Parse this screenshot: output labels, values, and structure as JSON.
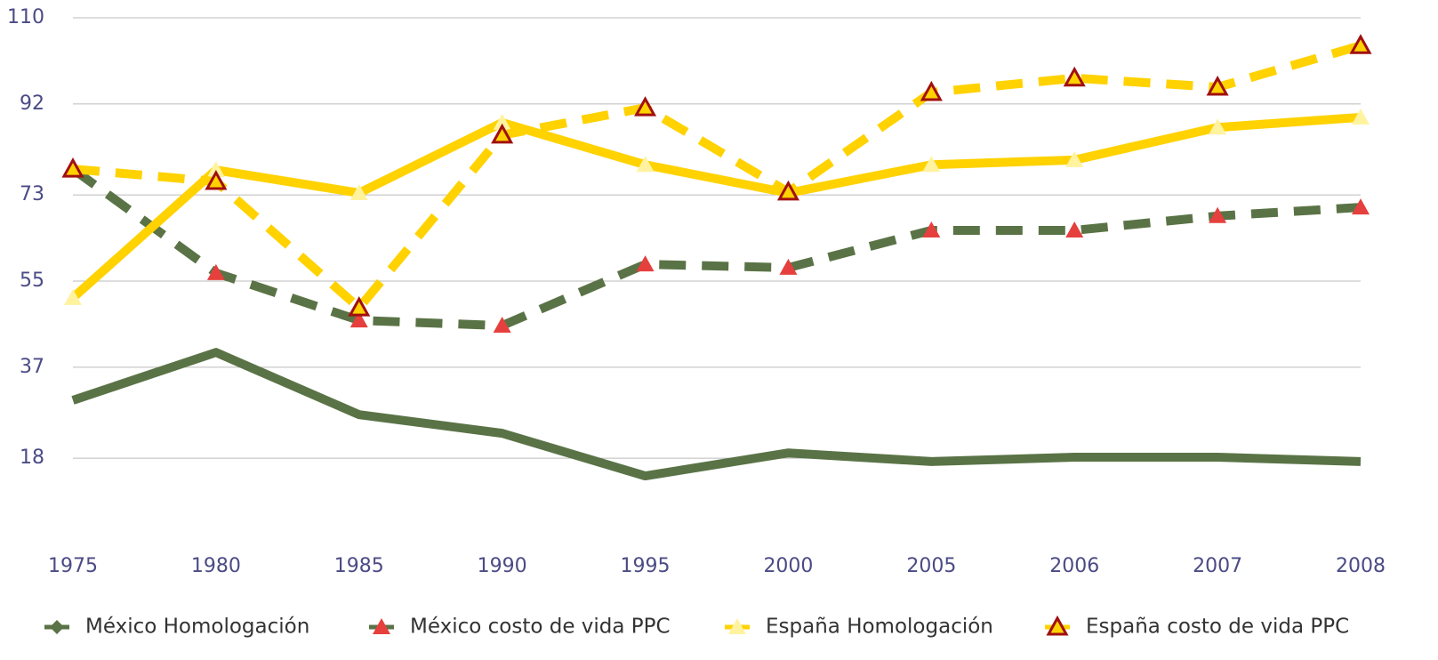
{
  "chart_data": {
    "type": "line",
    "categories": [
      "1975",
      "1980",
      "1985",
      "1990",
      "1995",
      "2000",
      "2005",
      "2006",
      "2007",
      "2008"
    ],
    "series": [
      {
        "name": "México Homologación",
        "color": "#5a7346",
        "dashed": false,
        "marker": "diamond",
        "values": [
          30.1,
          40.1,
          27.1,
          23.2,
          14.3,
          19.1,
          17.3,
          18.2,
          18.2,
          17.3
        ]
      },
      {
        "name": "México costo de vida PPC",
        "color": "#5a7346",
        "marker_color": "#e5403d",
        "dashed": true,
        "marker": "triangle",
        "values": [
          78.4,
          56.7,
          46.8,
          45.7,
          58.5,
          57.8,
          65.6,
          65.6,
          68.6,
          70.4
        ]
      },
      {
        "name": "España Homologación",
        "color": "#ffd200",
        "marker_color": "#fff3a0",
        "dashed": false,
        "marker": "triangle",
        "values": [
          51.5,
          78.2,
          73.4,
          88.1,
          79.3,
          73.4,
          79.3,
          80.3,
          87.1,
          89.2
        ]
      },
      {
        "name": "España costo de vida PPC",
        "color": "#ffd200",
        "marker_color": "#a01010",
        "dashed": true,
        "marker": "hollow-triangle",
        "values": [
          78.4,
          75.8,
          49.4,
          85.5,
          91.2,
          73.6,
          94.4,
          97.4,
          95.5,
          104.2
        ]
      }
    ],
    "ylim": [
      0,
      110
    ],
    "yticks": [
      18,
      37,
      55,
      73,
      92,
      110
    ],
    "grid": true,
    "legend": "bottom"
  }
}
